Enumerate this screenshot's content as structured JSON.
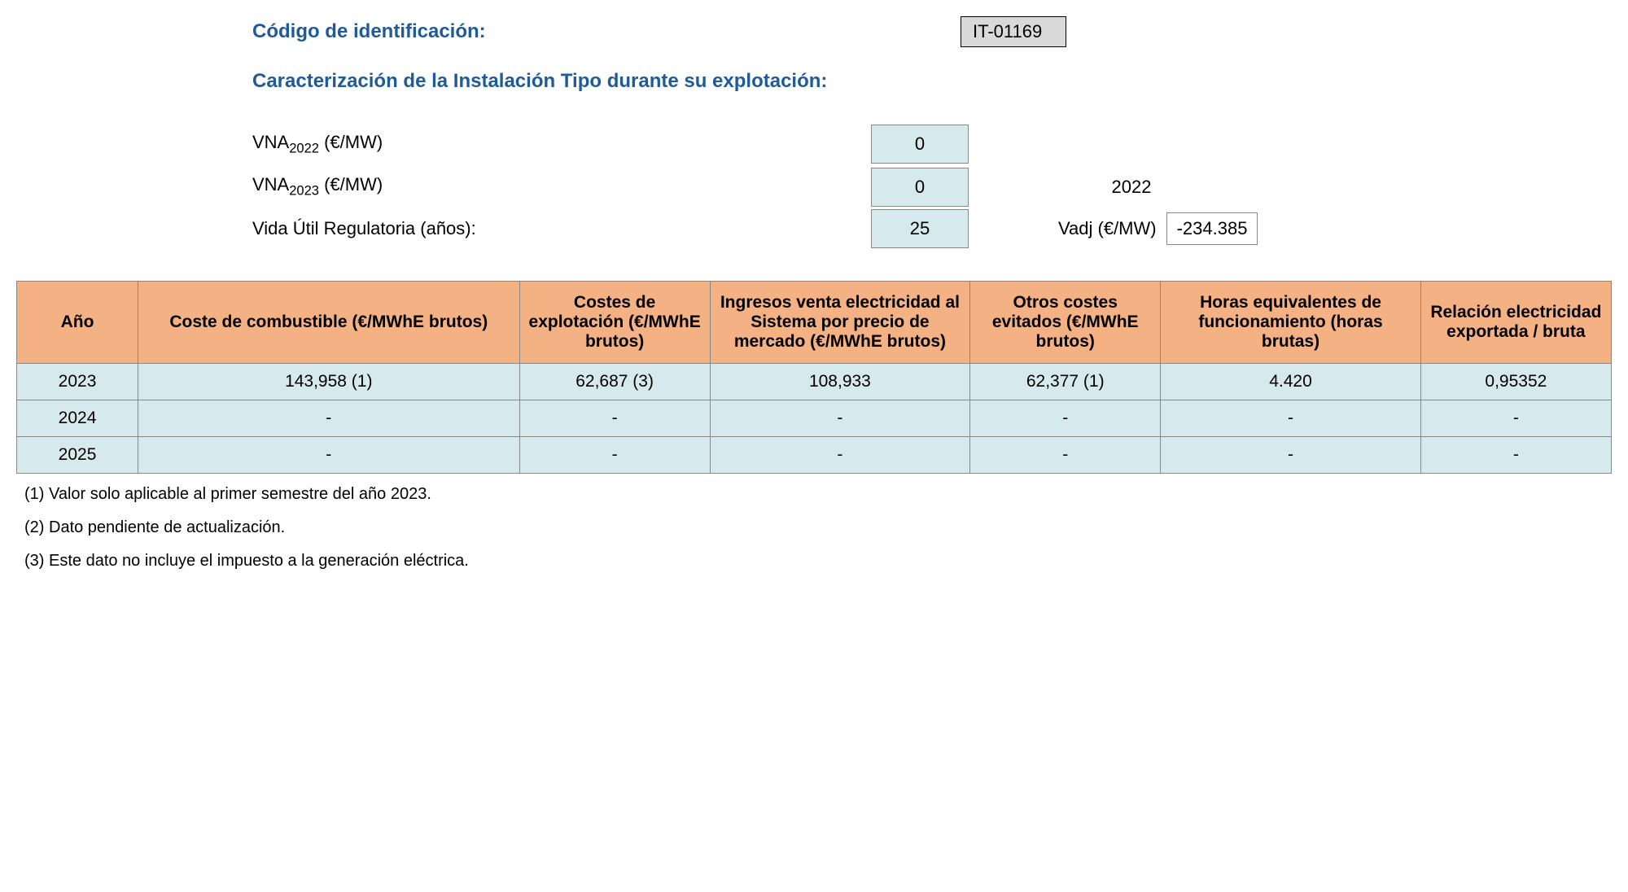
{
  "header": {
    "code_label": "Código de identificación:",
    "code_value": "IT-01169",
    "section_title": "Caracterización de la Instalación Tipo durante su explotación:"
  },
  "params": {
    "vna2022_label_prefix": "VNA",
    "vna2022_sub": "2022",
    "vna2022_unit": " (€/MW)",
    "vna2022_value": "0",
    "vna2023_label_prefix": "VNA",
    "vna2023_sub": "2023",
    "vna2023_unit": " (€/MW)",
    "vna2023_value": "0",
    "vida_label": "Vida Útil Regulatoria (años):",
    "vida_value": "25",
    "year_side": "2022",
    "vadj_label": "Vadj (€/MW)",
    "vadj_value": "-234.385"
  },
  "table": {
    "headers": {
      "ano": "Año",
      "coste": "Coste de combustible (€/MWhE brutos)",
      "exp": "Costes de explotación (€/MWhE brutos)",
      "ing": "Ingresos venta electricidad al Sistema por precio de mercado (€/MWhE brutos)",
      "otros": "Otros costes evitados (€/MWhE brutos)",
      "horas": "Horas equivalentes de funcionamiento (horas brutas)",
      "rel": "Relación electricidad exportada / bruta"
    },
    "rows": [
      {
        "ano": "2023",
        "coste": "143,958 (1)",
        "exp": "62,687 (3)",
        "ing": "108,933",
        "otros": "62,377 (1)",
        "horas": "4.420",
        "rel": "0,95352"
      },
      {
        "ano": "2024",
        "coste": "-",
        "exp": "-",
        "ing": "-",
        "otros": "-",
        "horas": "-",
        "rel": "-"
      },
      {
        "ano": "2025",
        "coste": "-",
        "exp": "-",
        "ing": "-",
        "otros": "-",
        "horas": "-",
        "rel": "-"
      }
    ]
  },
  "footnotes": {
    "n1": "(1) Valor solo aplicable al primer semestre del año 2023.",
    "n2": "(2) Dato pendiente de actualización.",
    "n3": "(3) Este dato no incluye el impuesto a la generación eléctrica."
  },
  "styling": {
    "header_bg": "#f4b183",
    "cell_bg": "#d6e9ed",
    "code_bg": "#d9d9d9",
    "title_color": "#1f5a9a",
    "border_color": "#888888"
  }
}
